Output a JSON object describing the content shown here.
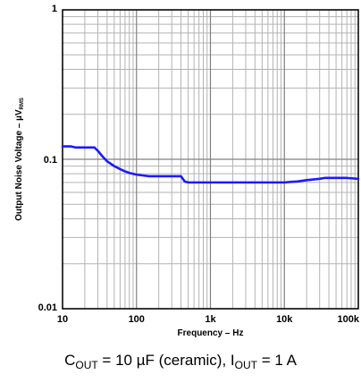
{
  "chart_data": {
    "type": "line",
    "title": "",
    "xlabel": "Frequency – Hz",
    "ylabel": "Output Noise Voltage – µV",
    "ylabel_subscript": "RMS",
    "xscale": "log",
    "yscale": "log",
    "xlim": [
      10,
      100000
    ],
    "ylim": [
      0.01,
      1
    ],
    "x_ticks": [
      10,
      100,
      1000,
      10000,
      100000
    ],
    "x_tick_labels": [
      "10",
      "100",
      "1k",
      "10k",
      "100k"
    ],
    "y_ticks": [
      0.01,
      0.1,
      1
    ],
    "y_tick_labels": [
      "0.01",
      "0.1",
      "1"
    ],
    "grid": true,
    "legend": false,
    "series": [
      {
        "color": "#1a1aff",
        "x": [
          10,
          13,
          15,
          20,
          27,
          30,
          35,
          40,
          50,
          60,
          70,
          80,
          100,
          120,
          150,
          200,
          300,
          400,
          450,
          500,
          600,
          800,
          1000,
          2000,
          3000,
          5000,
          10000,
          12000,
          15000,
          20000,
          30000,
          35000,
          50000,
          70000,
          100000
        ],
        "y": [
          0.122,
          0.122,
          0.12,
          0.12,
          0.12,
          0.114,
          0.104,
          0.097,
          0.09,
          0.086,
          0.083,
          0.081,
          0.079,
          0.078,
          0.077,
          0.077,
          0.077,
          0.077,
          0.071,
          0.07,
          0.07,
          0.07,
          0.07,
          0.07,
          0.07,
          0.07,
          0.07,
          0.0705,
          0.071,
          0.0725,
          0.074,
          0.075,
          0.075,
          0.075,
          0.074
        ]
      }
    ]
  },
  "caption": {
    "c_main": "C",
    "c_sub": "OUT",
    "c_rest": " = 10 µF (ceramic), I",
    "i_sub": "OUT",
    "i_rest": " = 1 A"
  }
}
